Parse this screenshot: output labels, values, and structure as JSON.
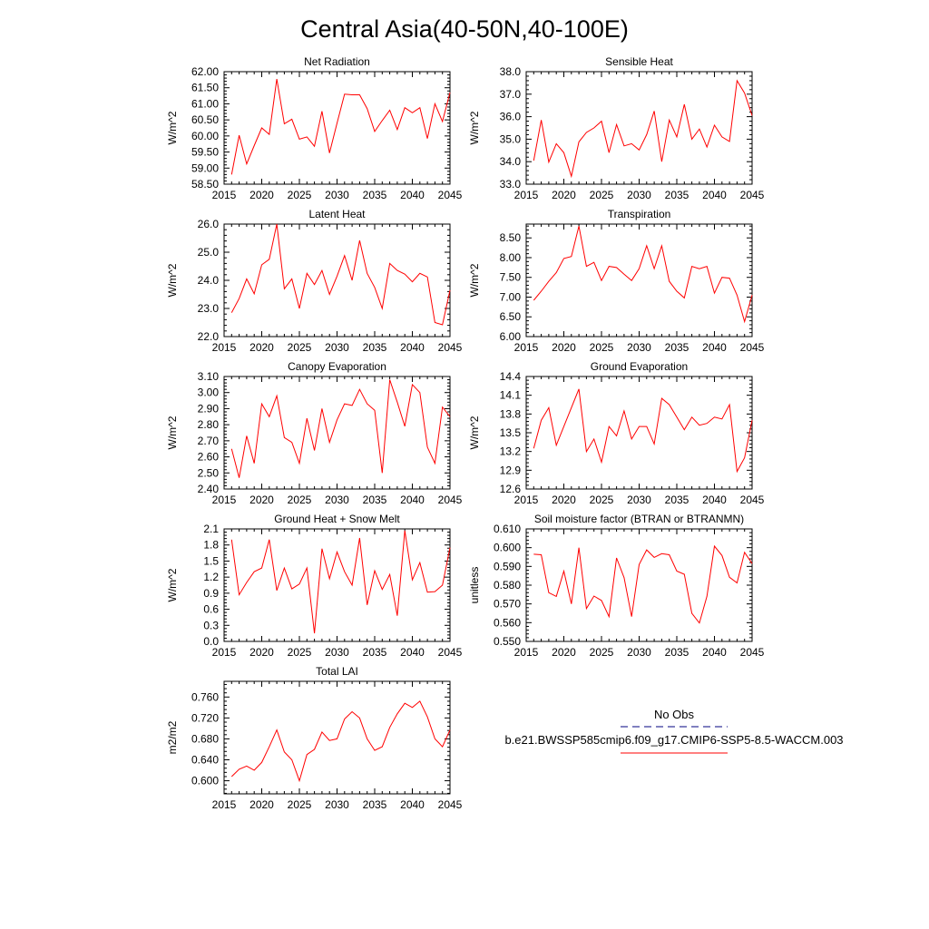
{
  "figure_title": "Central Asia(40-50N,40-100E)",
  "legend": {
    "obs_label": "No Obs",
    "obs_color": "#000080",
    "model_label": "b.e21.BWSSP585cmip6.f09_g17.CMIP6-SSP5-8.5-WACCM.003",
    "model_color": "#ff0000"
  },
  "chart_data": [
    {
      "type": "line",
      "title": "Net Radiation",
      "xlabel": "",
      "ylabel": "W/m^2",
      "xlim": [
        2015,
        2045
      ],
      "ylim": [
        58.5,
        62.0
      ],
      "xticks": [
        "2015",
        "2020",
        "2025",
        "2030",
        "2035",
        "2040",
        "2045"
      ],
      "yticks": [
        "58.50",
        "59.00",
        "59.50",
        "60.00",
        "60.50",
        "61.00",
        "61.50",
        "62.00"
      ],
      "x": [
        2016,
        2017,
        2018,
        2019,
        2020,
        2021,
        2022,
        2023,
        2024,
        2025,
        2026,
        2027,
        2028,
        2029,
        2030,
        2031,
        2032,
        2033,
        2034,
        2035,
        2036,
        2037,
        2038,
        2039,
        2040,
        2041,
        2042,
        2043,
        2044,
        2045
      ],
      "series": [
        {
          "name": "b.e21.BWSSP585cmip6.f09_g17.CMIP6-SSP5-8.5-WACCM.003",
          "values": [
            58.8,
            60.02,
            59.13,
            59.7,
            60.25,
            60.05,
            61.77,
            60.38,
            60.52,
            59.9,
            59.97,
            59.68,
            60.77,
            59.47,
            60.4,
            61.3,
            61.28,
            61.28,
            60.85,
            60.14,
            60.48,
            60.8,
            60.2,
            60.88,
            60.72,
            60.88,
            59.92,
            61.0,
            60.45,
            61.35
          ]
        }
      ]
    },
    {
      "type": "line",
      "title": "Sensible Heat",
      "xlabel": "",
      "ylabel": "W/m^2",
      "xlim": [
        2015,
        2045
      ],
      "ylim": [
        33.0,
        38.0
      ],
      "xticks": [
        "2015",
        "2020",
        "2025",
        "2030",
        "2035",
        "2040",
        "2045"
      ],
      "yticks": [
        "33.0",
        "34.0",
        "35.0",
        "36.0",
        "37.0",
        "38.0"
      ],
      "x": [
        2016,
        2017,
        2018,
        2019,
        2020,
        2021,
        2022,
        2023,
        2024,
        2025,
        2026,
        2027,
        2028,
        2029,
        2030,
        2031,
        2032,
        2033,
        2034,
        2035,
        2036,
        2037,
        2038,
        2039,
        2040,
        2041,
        2042,
        2043,
        2044,
        2045
      ],
      "series": [
        {
          "name": "b.e21.BWSSP585cmip6.f09_g17.CMIP6-SSP5-8.5-WACCM.003",
          "values": [
            34.05,
            35.85,
            33.98,
            34.8,
            34.4,
            33.35,
            34.88,
            35.3,
            35.5,
            35.8,
            34.4,
            35.65,
            34.7,
            34.8,
            34.52,
            35.2,
            36.25,
            34.0,
            35.85,
            35.1,
            36.55,
            35.0,
            35.45,
            34.65,
            35.62,
            35.1,
            34.9,
            37.6,
            37.05,
            36.05
          ]
        }
      ]
    },
    {
      "type": "line",
      "title": "Latent Heat",
      "xlabel": "",
      "ylabel": "W/m^2",
      "xlim": [
        2015,
        2045
      ],
      "ylim": [
        22.0,
        26.0
      ],
      "xticks": [
        "2015",
        "2020",
        "2025",
        "2030",
        "2035",
        "2040",
        "2045"
      ],
      "yticks": [
        "22.0",
        "23.0",
        "24.0",
        "25.0",
        "26.0"
      ],
      "x": [
        2016,
        2017,
        2018,
        2019,
        2020,
        2021,
        2022,
        2023,
        2024,
        2025,
        2026,
        2027,
        2028,
        2029,
        2030,
        2031,
        2032,
        2033,
        2034,
        2035,
        2036,
        2037,
        2038,
        2039,
        2040,
        2041,
        2042,
        2043,
        2044,
        2045
      ],
      "series": [
        {
          "name": "b.e21.BWSSP585cmip6.f09_g17.CMIP6-SSP5-8.5-WACCM.003",
          "values": [
            22.85,
            23.35,
            24.05,
            23.52,
            24.55,
            24.75,
            26.0,
            23.7,
            24.05,
            23.0,
            24.25,
            23.85,
            24.35,
            23.5,
            24.15,
            24.88,
            24.0,
            25.42,
            24.25,
            23.75,
            23.0,
            24.6,
            24.35,
            24.22,
            23.95,
            24.25,
            24.12,
            22.5,
            22.42,
            23.65
          ]
        }
      ]
    },
    {
      "type": "line",
      "title": "Transpiration",
      "xlabel": "",
      "ylabel": "W/m^2",
      "xlim": [
        2015,
        2045
      ],
      "ylim": [
        6.0,
        8.85
      ],
      "xticks": [
        "2015",
        "2020",
        "2025",
        "2030",
        "2035",
        "2040",
        "2045"
      ],
      "yticks": [
        "6.00",
        "6.50",
        "7.00",
        "7.50",
        "8.00",
        "8.50"
      ],
      "x": [
        2016,
        2017,
        2018,
        2019,
        2020,
        2021,
        2022,
        2023,
        2024,
        2025,
        2026,
        2027,
        2028,
        2029,
        2030,
        2031,
        2032,
        2033,
        2034,
        2035,
        2036,
        2037,
        2038,
        2039,
        2040,
        2041,
        2042,
        2043,
        2044,
        2045
      ],
      "series": [
        {
          "name": "b.e21.BWSSP585cmip6.f09_g17.CMIP6-SSP5-8.5-WACCM.003",
          "values": [
            6.92,
            7.15,
            7.4,
            7.62,
            7.98,
            8.03,
            8.8,
            7.78,
            7.88,
            7.42,
            7.78,
            7.75,
            7.58,
            7.42,
            7.72,
            8.3,
            7.72,
            8.3,
            7.4,
            7.15,
            6.98,
            7.78,
            7.72,
            7.78,
            7.1,
            7.5,
            7.48,
            7.05,
            6.38,
            7.05
          ]
        }
      ]
    },
    {
      "type": "line",
      "title": "Canopy Evaporation",
      "xlabel": "",
      "ylabel": "W/m^2",
      "xlim": [
        2015,
        2045
      ],
      "ylim": [
        2.4,
        3.1
      ],
      "xticks": [
        "2015",
        "2020",
        "2025",
        "2030",
        "2035",
        "2040",
        "2045"
      ],
      "yticks": [
        "2.40",
        "2.50",
        "2.60",
        "2.70",
        "2.80",
        "2.90",
        "3.00",
        "3.10"
      ],
      "x": [
        2016,
        2017,
        2018,
        2019,
        2020,
        2021,
        2022,
        2023,
        2024,
        2025,
        2026,
        2027,
        2028,
        2029,
        2030,
        2031,
        2032,
        2033,
        2034,
        2035,
        2036,
        2037,
        2038,
        2039,
        2040,
        2041,
        2042,
        2043,
        2044,
        2045
      ],
      "series": [
        {
          "name": "b.e21.BWSSP585cmip6.f09_g17.CMIP6-SSP5-8.5-WACCM.003",
          "values": [
            2.65,
            2.47,
            2.73,
            2.56,
            2.93,
            2.85,
            2.98,
            2.72,
            2.69,
            2.56,
            2.84,
            2.64,
            2.9,
            2.69,
            2.83,
            2.93,
            2.92,
            3.02,
            2.93,
            2.89,
            2.5,
            3.08,
            2.94,
            2.79,
            3.05,
            3.0,
            2.66,
            2.56,
            2.91,
            2.85
          ]
        }
      ]
    },
    {
      "type": "line",
      "title": "Ground Evaporation",
      "xlabel": "",
      "ylabel": "W/m^2",
      "xlim": [
        2015,
        2045
      ],
      "ylim": [
        12.6,
        14.4
      ],
      "xticks": [
        "2015",
        "2020",
        "2025",
        "2030",
        "2035",
        "2040",
        "2045"
      ],
      "yticks": [
        "12.6",
        "12.9",
        "13.2",
        "13.5",
        "13.8",
        "14.1",
        "14.4"
      ],
      "x": [
        2016,
        2017,
        2018,
        2019,
        2020,
        2021,
        2022,
        2023,
        2024,
        2025,
        2026,
        2027,
        2028,
        2029,
        2030,
        2031,
        2032,
        2033,
        2034,
        2035,
        2036,
        2037,
        2038,
        2039,
        2040,
        2041,
        2042,
        2043,
        2044,
        2045
      ],
      "series": [
        {
          "name": "b.e21.BWSSP585cmip6.f09_g17.CMIP6-SSP5-8.5-WACCM.003",
          "values": [
            13.25,
            13.7,
            13.9,
            13.3,
            13.6,
            13.9,
            14.2,
            13.2,
            13.4,
            13.03,
            13.6,
            13.45,
            13.85,
            13.4,
            13.6,
            13.6,
            13.32,
            14.05,
            13.95,
            13.75,
            13.55,
            13.75,
            13.62,
            13.65,
            13.75,
            13.72,
            13.95,
            12.88,
            13.1,
            13.7
          ]
        }
      ]
    },
    {
      "type": "line",
      "title": "Ground Heat + Snow Melt",
      "xlabel": "",
      "ylabel": "W/m^2",
      "xlim": [
        2015,
        2045
      ],
      "ylim": [
        0.0,
        2.1
      ],
      "xticks": [
        "2015",
        "2020",
        "2025",
        "2030",
        "2035",
        "2040",
        "2045"
      ],
      "yticks": [
        "0.0",
        "0.3",
        "0.6",
        "0.9",
        "1.2",
        "1.5",
        "1.8",
        "2.1"
      ],
      "x": [
        2016,
        2017,
        2018,
        2019,
        2020,
        2021,
        2022,
        2023,
        2024,
        2025,
        2026,
        2027,
        2028,
        2029,
        2030,
        2031,
        2032,
        2033,
        2034,
        2035,
        2036,
        2037,
        2038,
        2039,
        2040,
        2041,
        2042,
        2043,
        2044,
        2045
      ],
      "series": [
        {
          "name": "b.e21.BWSSP585cmip6.f09_g17.CMIP6-SSP5-8.5-WACCM.003",
          "values": [
            1.9,
            0.87,
            1.1,
            1.3,
            1.37,
            1.9,
            0.95,
            1.37,
            0.98,
            1.07,
            1.37,
            0.15,
            1.73,
            1.17,
            1.67,
            1.3,
            1.05,
            1.93,
            0.68,
            1.32,
            0.97,
            1.25,
            0.48,
            2.07,
            1.15,
            1.47,
            0.92,
            0.93,
            1.05,
            1.75
          ]
        }
      ]
    },
    {
      "type": "line",
      "title": "Soil moisture factor (BTRAN or BTRANMN)",
      "xlabel": "",
      "ylabel": "unitless",
      "xlim": [
        2015,
        2045
      ],
      "ylim": [
        0.55,
        0.61
      ],
      "xticks": [
        "2015",
        "2020",
        "2025",
        "2030",
        "2035",
        "2040",
        "2045"
      ],
      "yticks": [
        "0.550",
        "0.560",
        "0.570",
        "0.580",
        "0.590",
        "0.600",
        "0.610"
      ],
      "x": [
        2016,
        2017,
        2018,
        2019,
        2020,
        2021,
        2022,
        2023,
        2024,
        2025,
        2026,
        2027,
        2028,
        2029,
        2030,
        2031,
        2032,
        2033,
        2034,
        2035,
        2036,
        2037,
        2038,
        2039,
        2040,
        2041,
        2042,
        2043,
        2044,
        2045
      ],
      "series": [
        {
          "name": "b.e21.BWSSP585cmip6.f09_g17.CMIP6-SSP5-8.5-WACCM.003",
          "values": [
            0.5965,
            0.5962,
            0.576,
            0.574,
            0.5875,
            0.57,
            0.6,
            0.5675,
            0.5742,
            0.5718,
            0.5632,
            0.5945,
            0.584,
            0.5632,
            0.591,
            0.5988,
            0.5948,
            0.5968,
            0.5962,
            0.5875,
            0.5858,
            0.565,
            0.5598,
            0.574,
            0.6008,
            0.5958,
            0.5842,
            0.5812,
            0.5975,
            0.5915
          ]
        }
      ]
    },
    {
      "type": "line",
      "title": "Total LAI",
      "xlabel": "",
      "ylabel": "m2/m2",
      "xlim": [
        2015,
        2045
      ],
      "ylim": [
        0.575,
        0.79
      ],
      "xticks": [
        "2015",
        "2020",
        "2025",
        "2030",
        "2035",
        "2040",
        "2045"
      ],
      "yticks": [
        "0.600",
        "0.640",
        "0.680",
        "0.720",
        "0.760"
      ],
      "x": [
        2016,
        2017,
        2018,
        2019,
        2020,
        2021,
        2022,
        2023,
        2024,
        2025,
        2026,
        2027,
        2028,
        2029,
        2030,
        2031,
        2032,
        2033,
        2034,
        2035,
        2036,
        2037,
        2038,
        2039,
        2040,
        2041,
        2042,
        2043,
        2044,
        2045
      ],
      "series": [
        {
          "name": "b.e21.BWSSP585cmip6.f09_g17.CMIP6-SSP5-8.5-WACCM.003",
          "values": [
            0.608,
            0.622,
            0.628,
            0.62,
            0.635,
            0.665,
            0.697,
            0.655,
            0.64,
            0.6,
            0.65,
            0.66,
            0.693,
            0.677,
            0.68,
            0.718,
            0.732,
            0.72,
            0.68,
            0.658,
            0.665,
            0.702,
            0.728,
            0.748,
            0.74,
            0.752,
            0.722,
            0.68,
            0.665,
            0.697
          ]
        }
      ]
    }
  ]
}
